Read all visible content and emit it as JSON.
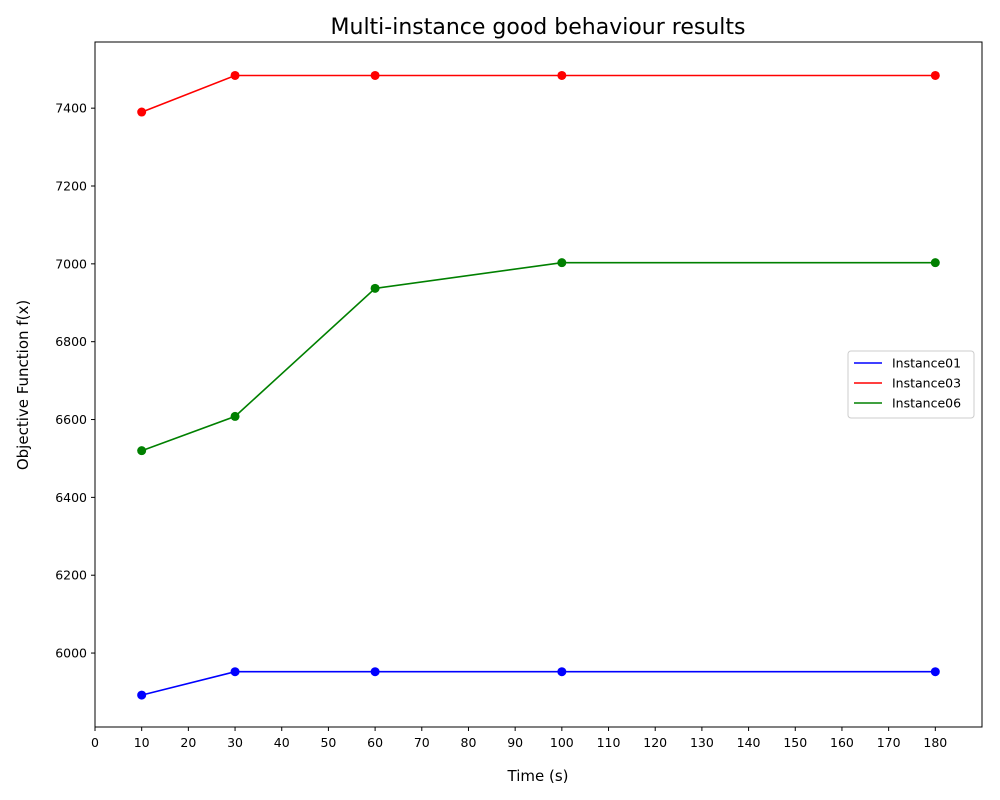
{
  "chart_data": {
    "type": "line",
    "title": "Multi-instance good behaviour results",
    "xlabel": "Time (s)",
    "ylabel": "Objective Function f(x)",
    "x_ticks": [
      0,
      10,
      20,
      30,
      40,
      50,
      60,
      70,
      80,
      90,
      100,
      110,
      120,
      130,
      140,
      150,
      160,
      170,
      180
    ],
    "y_ticks": [
      6000,
      6200,
      6400,
      6600,
      6800,
      7000,
      7200,
      7400
    ],
    "xlim": [
      0,
      190
    ],
    "ylim": [
      5810,
      7570
    ],
    "grid": false,
    "legend_position": "center-right",
    "x": [
      10,
      30,
      60,
      100,
      180
    ],
    "series": [
      {
        "name": "Instance01",
        "color": "#0000ff",
        "values": [
          5892,
          5952,
          5952,
          5952,
          5952
        ]
      },
      {
        "name": "Instance03",
        "color": "#ff0000",
        "values": [
          7390,
          7484,
          7484,
          7484,
          7484
        ]
      },
      {
        "name": "Instance06",
        "color": "#008000",
        "values": [
          6520,
          6608,
          6937,
          7003,
          7003
        ]
      }
    ]
  }
}
